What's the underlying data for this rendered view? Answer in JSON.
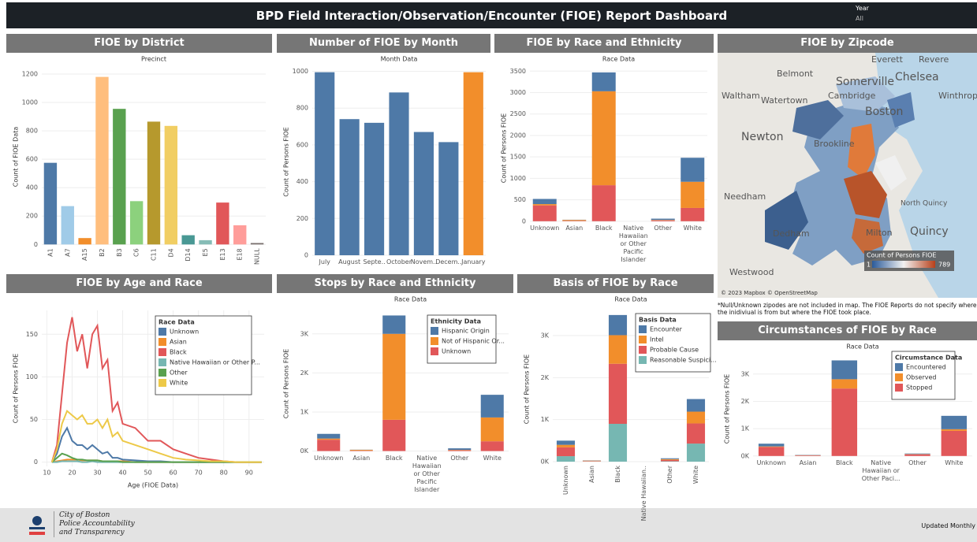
{
  "header": {
    "title": "BPD Field Interaction/Observation/Encounter (FIOE) Report Dashboard",
    "filter_label": "Year",
    "filter_value": "All"
  },
  "chart_data": [
    {
      "type": "bar",
      "title": "FIOE by District",
      "subtitle": "Precinct",
      "ylabel": "Count of FIOE Data",
      "categories": [
        "A1",
        "A7",
        "A15",
        "B2",
        "B3",
        "C6",
        "C11",
        "D4",
        "D14",
        "E5",
        "E13",
        "E18",
        "NULL"
      ],
      "values": [
        575,
        270,
        45,
        1180,
        955,
        305,
        865,
        835,
        65,
        30,
        295,
        135,
        10
      ],
      "colors": [
        "#4e79a7",
        "#a0cbe8",
        "#f28e2b",
        "#ffbe7d",
        "#59a14f",
        "#8cd17d",
        "#b6992d",
        "#f1ce63",
        "#499894",
        "#86bcb6",
        "#e15759",
        "#ff9d9a",
        "#79706e"
      ],
      "ylim": [
        -15,
        1250
      ],
      "yticks": [
        0,
        200,
        400,
        600,
        800,
        1000,
        1200
      ],
      "grid": true
    },
    {
      "type": "bar",
      "title": "Number of FIOE by Month",
      "subtitle": "Month Data",
      "ylabel": "Count of Persons FIOE",
      "categories": [
        "July",
        "August",
        "Septe..",
        "October",
        "Novem..",
        "Decem..",
        "January"
      ],
      "values": [
        995,
        740,
        720,
        885,
        670,
        615,
        995
      ],
      "colors": [
        "#4e79a7",
        "#4e79a7",
        "#4e79a7",
        "#4e79a7",
        "#4e79a7",
        "#4e79a7",
        "#f28e2b"
      ],
      "ylim": [
        0,
        1015
      ],
      "yticks": [
        0,
        200,
        400,
        600,
        800,
        1000
      ],
      "grid": true
    },
    {
      "type": "bar",
      "title": "FIOE by Race and Ethnicity",
      "subtitle": "Race Data",
      "ylabel": "Count of Persons FIOE",
      "categories": [
        "Unknown",
        "Asian",
        "Black",
        "Native Hawaiian or Other Pacific Islander",
        "Other",
        "White"
      ],
      "series": [
        {
          "color": "#4e79a7",
          "values": [
            120,
            5,
            440,
            null,
            30,
            560
          ]
        },
        {
          "color": "#f28e2b",
          "values": [
            30,
            20,
            2190,
            null,
            10,
            610
          ]
        },
        {
          "color": "#e15759",
          "values": [
            370,
            10,
            840,
            null,
            20,
            310
          ]
        }
      ],
      "ylim": [
        -150,
        3560
      ],
      "yticks": [
        0,
        500,
        1000,
        1500,
        2000,
        2500,
        3000,
        3500
      ],
      "grid": true
    },
    {
      "type": "line",
      "title": "FIOE by Age and Race",
      "xlabel": "Age (FIOE Data)",
      "ylabel": "Count of Persons FIOE",
      "legend_title": "Race Data",
      "x": [
        12,
        14,
        16,
        18,
        20,
        22,
        24,
        26,
        28,
        30,
        32,
        34,
        36,
        38,
        40,
        45,
        50,
        55,
        60,
        65,
        70,
        75,
        80,
        85,
        90,
        95
      ],
      "series": [
        {
          "name": "Unknown",
          "color": "#4e79a7",
          "values": [
            0,
            10,
            30,
            40,
            25,
            20,
            20,
            15,
            20,
            15,
            10,
            12,
            5,
            5,
            3,
            2,
            1,
            1,
            0,
            0,
            0,
            0,
            0,
            0,
            0,
            0
          ]
        },
        {
          "name": "Asian",
          "color": "#f28e2b",
          "values": [
            0,
            1,
            2,
            3,
            3,
            3,
            2,
            2,
            2,
            2,
            1,
            1,
            1,
            1,
            1,
            0,
            0,
            0,
            0,
            0,
            0,
            0,
            0,
            0,
            0,
            0
          ]
        },
        {
          "name": "Black",
          "color": "#e15759",
          "values": [
            0,
            20,
            80,
            140,
            170,
            130,
            150,
            110,
            150,
            160,
            110,
            120,
            60,
            70,
            45,
            40,
            25,
            25,
            15,
            10,
            5,
            3,
            1,
            0,
            0,
            0
          ]
        },
        {
          "name": "Native Hawaiian or Other P...",
          "color": "#76b7b2",
          "values": [
            0,
            0,
            1,
            1,
            1,
            1,
            0,
            0,
            1,
            0,
            0,
            0,
            0,
            0,
            0,
            0,
            0,
            0,
            0,
            0,
            0,
            0,
            0,
            0,
            0,
            0
          ]
        },
        {
          "name": "Other",
          "color": "#59a14f",
          "values": [
            0,
            5,
            10,
            8,
            5,
            3,
            3,
            2,
            2,
            2,
            1,
            1,
            1,
            1,
            0,
            0,
            0,
            0,
            0,
            0,
            0,
            0,
            0,
            0,
            0,
            0
          ]
        },
        {
          "name": "White",
          "color": "#edc948",
          "values": [
            0,
            15,
            45,
            60,
            55,
            50,
            55,
            45,
            45,
            50,
            40,
            50,
            30,
            35,
            25,
            20,
            15,
            10,
            5,
            3,
            2,
            1,
            1,
            0,
            0,
            0
          ]
        }
      ],
      "xlim": [
        8,
        96
      ],
      "xticks": [
        10,
        20,
        30,
        40,
        50,
        60,
        70,
        80,
        90
      ],
      "ylim": [
        -5,
        178
      ],
      "yticks": [
        0,
        50,
        100,
        150
      ],
      "grid": true
    },
    {
      "type": "bar",
      "title": "Stops by Race and Ethnicity",
      "subtitle": "Race Data",
      "ylabel": "Count of Persons FIOE",
      "legend_title": "Ethnicity Data",
      "categories": [
        "Unknown",
        "Asian",
        "Black",
        "Native Hawaiian or Other Pacific Islander",
        "Other",
        "White"
      ],
      "series": [
        {
          "name": "Hispanic Origin",
          "color": "#4e79a7",
          "values": [
            120,
            5,
            470,
            null,
            40,
            580
          ]
        },
        {
          "name": "Not of Hispanic Or...",
          "color": "#f28e2b",
          "values": [
            30,
            20,
            2200,
            null,
            10,
            610
          ]
        },
        {
          "name": "Unknown",
          "color": "#e15759",
          "values": [
            290,
            10,
            800,
            null,
            20,
            250
          ]
        }
      ],
      "ylim": [
        -150,
        3600
      ],
      "yticks": [
        {
          "value": 0,
          "label": "0K"
        },
        {
          "value": 1000,
          "label": "1K"
        },
        {
          "value": 2000,
          "label": "2K"
        },
        {
          "value": 3000,
          "label": "3K"
        }
      ],
      "grid": true
    },
    {
      "type": "bar",
      "title": "Basis of FIOE by Race",
      "subtitle": "Race Data",
      "ylabel": "Count of Persons FIOE",
      "legend_title": "Basis Data",
      "categories": [
        "Unknown",
        "Asian",
        "Black",
        "Native Hawaiian..",
        "Other",
        "White"
      ],
      "series": [
        {
          "name": "Encounter",
          "color": "#4e79a7",
          "values": [
            100,
            5,
            480,
            null,
            20,
            300
          ]
        },
        {
          "name": "Intel",
          "color": "#f28e2b",
          "values": [
            60,
            10,
            680,
            null,
            20,
            280
          ]
        },
        {
          "name": "Probable Cause",
          "color": "#e15759",
          "values": [
            210,
            10,
            1430,
            null,
            30,
            480
          ]
        },
        {
          "name": "Reasonable Suspici...",
          "color": "#76b7b2",
          "values": [
            130,
            5,
            900,
            null,
            10,
            430
          ]
        }
      ],
      "ylim": [
        -150,
        3600
      ],
      "yticks": [
        {
          "value": 0,
          "label": "0K"
        },
        {
          "value": 1000,
          "label": "1K"
        },
        {
          "value": 2000,
          "label": "2K"
        },
        {
          "value": 3000,
          "label": "3K"
        }
      ],
      "grid": true
    },
    {
      "type": "bar",
      "title": "Circumstances of FIOE by Race",
      "subtitle": "Race Data",
      "ylabel": "Count of Persons FIOE",
      "legend_title": "Circumstance Data",
      "categories": [
        "Unknown",
        "Asian",
        "Black",
        "Native Hawaiian or Other Paci...",
        "Other",
        "White"
      ],
      "series": [
        {
          "name": "Encountered",
          "color": "#4e79a7",
          "values": [
            100,
            10,
            690,
            null,
            20,
            490
          ]
        },
        {
          "name": "Observed",
          "color": "#f28e2b",
          "values": [
            20,
            10,
            340,
            null,
            10,
            60
          ]
        },
        {
          "name": "Stopped",
          "color": "#e15759",
          "values": [
            330,
            20,
            2470,
            null,
            60,
            920
          ]
        }
      ],
      "ylim": [
        -150,
        3600
      ],
      "yticks": [
        {
          "value": 0,
          "label": "0K"
        },
        {
          "value": 1000,
          "label": "1K"
        },
        {
          "value": 2000,
          "label": "2K"
        },
        {
          "value": 3000,
          "label": "3K"
        }
      ],
      "grid": true
    }
  ],
  "map": {
    "title": "FIOE by Zipcode",
    "labels": [
      "Everett",
      "Revere",
      "Belmont",
      "Somerville",
      "Chelsea",
      "Waltham",
      "Watertown",
      "Cambridge",
      "Winthrop",
      "Boston",
      "Newton",
      "Brookline",
      "Needham",
      "Dedham",
      "Milton",
      "Quincy",
      "Westwood",
      "North Quincy"
    ],
    "legend_title": "Count of Persons FIOE",
    "legend_min": "1",
    "legend_max": "789",
    "attribution": "© 2023 Mapbox © OpenStreetMap",
    "note": "*Null/Unknown zipodes are not included in map. The FIOE Reports do not specify where the inidiviual is from but where the FIOE took place."
  },
  "footer": {
    "org_line1": "City of Boston",
    "org_line2": "Police Accountability",
    "org_line3": "and Transparency",
    "update": "Updated Monthly"
  }
}
